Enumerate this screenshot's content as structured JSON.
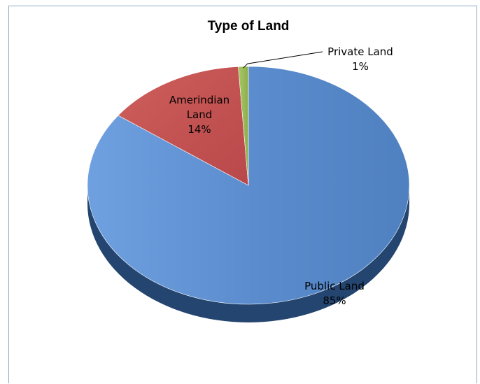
{
  "chart_data": {
    "type": "pie",
    "title": "Type of Land",
    "style": "3d",
    "slices": [
      {
        "label_lines": [
          "Public Land"
        ],
        "value_label": "85%",
        "value": 85,
        "color": "#5b8fd4",
        "dark": "#24456f"
      },
      {
        "label_lines": [
          "Amerindian",
          "Land"
        ],
        "value_label": "14%",
        "value": 14,
        "color": "#c0504d",
        "dark": "#7a2a28"
      },
      {
        "label_lines": [
          "Private Land"
        ],
        "value_label": "1%",
        "value": 1,
        "color": "#9bbb59",
        "dark": "#5d7a2c"
      }
    ]
  }
}
